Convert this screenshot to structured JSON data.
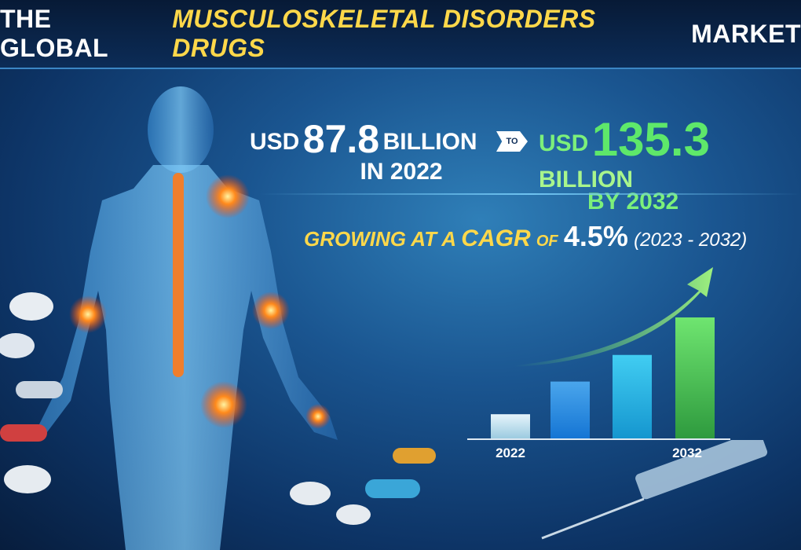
{
  "header": {
    "title_prefix": "THE GLOBAL",
    "title_highlight": "MUSCULOSKELETAL DISORDERS DRUGS",
    "title_suffix": "MARKET"
  },
  "stats": {
    "start": {
      "currency": "USD",
      "value": "87.8",
      "unit": "BILLION",
      "period": "IN 2022"
    },
    "connector": "TO",
    "end": {
      "currency": "USD",
      "value": "135.3",
      "unit": "BILLION",
      "period": "BY 2032"
    },
    "cagr": {
      "prefix": "GROWING AT A",
      "label": "CAGR",
      "of": "OF",
      "value": "4.5%",
      "period": "(2023 - 2032)"
    }
  },
  "colors": {
    "accent_yellow": "#ffd84a",
    "accent_green": "#5ee86a",
    "background": "#1a5590"
  },
  "chart_data": {
    "type": "bar",
    "categories": [
      "2022",
      "",
      "",
      "2032"
    ],
    "values": [
      20,
      47,
      69,
      100
    ],
    "tick_labels": [
      "2022",
      "2032"
    ],
    "trend_arrow": "up",
    "grid": false
  }
}
